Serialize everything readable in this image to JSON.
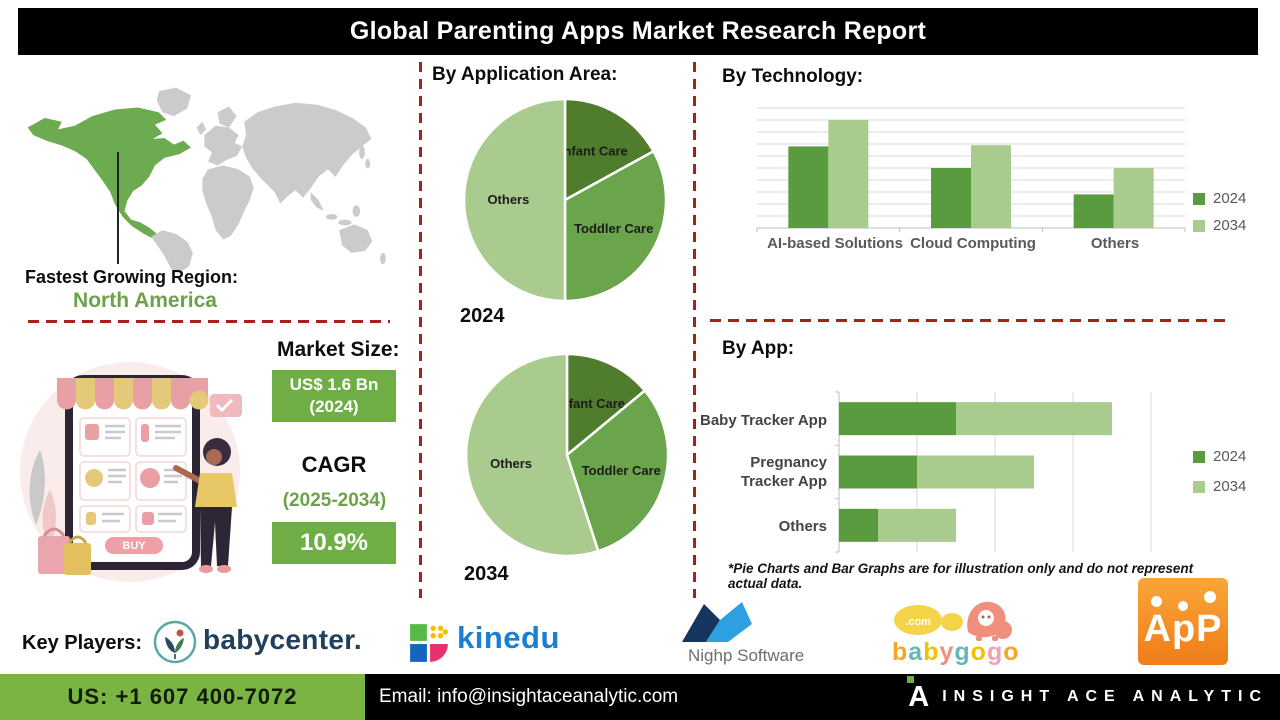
{
  "title": "Global Parenting Apps Market Research Report",
  "region": {
    "heading": "Fastest Growing Region:",
    "value": "North America"
  },
  "market": {
    "heading": "Market Size:",
    "size_value": "US$ 1.6 Bn",
    "size_year": "(2024)",
    "cagr_label": "CAGR",
    "cagr_period": "(2025-2034)",
    "cagr_value": "10.9%"
  },
  "illustration": {
    "buy_label": "BUY"
  },
  "chart_data": [
    {
      "id": "application-area-2024",
      "type": "pie",
      "section_title": "By Application Area:",
      "year_label": "2024",
      "labels": [
        "Infant Care",
        "Toddler Care",
        "Others"
      ],
      "values": [
        17,
        33,
        50
      ],
      "colors": [
        "#507c2e",
        "#6aa54b",
        "#a9cb8e"
      ]
    },
    {
      "id": "application-area-2034",
      "type": "pie",
      "year_label": "2034",
      "labels": [
        "Infant Care",
        "Toddler Care",
        "Others"
      ],
      "values": [
        14,
        31,
        55
      ],
      "colors": [
        "#507c2e",
        "#6aa54b",
        "#a9cb8e"
      ]
    },
    {
      "id": "technology",
      "type": "bar",
      "section_title": "By Technology:",
      "categories": [
        "AI-based Solutions",
        "Cloud Computing",
        "Others"
      ],
      "series": [
        {
          "name": "2024",
          "values": [
            68,
            50,
            28
          ]
        },
        {
          "name": "2034",
          "values": [
            90,
            69,
            50
          ]
        }
      ],
      "colors": [
        "#5b9b3f",
        "#a9cb8e"
      ],
      "ylim": [
        0,
        100
      ],
      "grid_step": 10,
      "legend_position": "right"
    },
    {
      "id": "app",
      "type": "stacked-hbar",
      "section_title": "By App:",
      "categories": [
        "Baby Tracker App",
        "Pregnancy Tracker App",
        "Others"
      ],
      "series": [
        {
          "name": "2024",
          "values": [
            1.5,
            1.0,
            0.5
          ]
        },
        {
          "name": "2034",
          "values": [
            2.0,
            1.5,
            1.0
          ]
        }
      ],
      "colors": [
        "#5b9b3f",
        "#a9cb8e"
      ],
      "xlim": [
        0,
        4.5
      ],
      "grid_step": 1,
      "legend_position": "right"
    }
  ],
  "footnote": "*Pie Charts and Bar Graphs are for illustration only and do not represent actual data.",
  "key_players": {
    "heading": "Key Players:",
    "babycenter": "babycenter.",
    "kinedu": "kinedu",
    "nighp": "Nighp Software",
    "babygogo": "babygogo",
    "babygogo_com": ".com",
    "app": "ApP"
  },
  "footer": {
    "phone": "US: +1 607 400-7072",
    "email": "Email: info@insightaceanalytic.com",
    "brand": "INSIGHT ACE ANALYTIC"
  },
  "colors": {
    "accent_red": "#a6201e",
    "box_green": "#6fae44",
    "text_green": "#6da24b",
    "footer_green": "#7ab544",
    "map_green": "#6cab4f",
    "map_gray": "#cbcbcb",
    "bar_2024": "#5b9b3f",
    "bar_2034": "#a9cb8e"
  }
}
